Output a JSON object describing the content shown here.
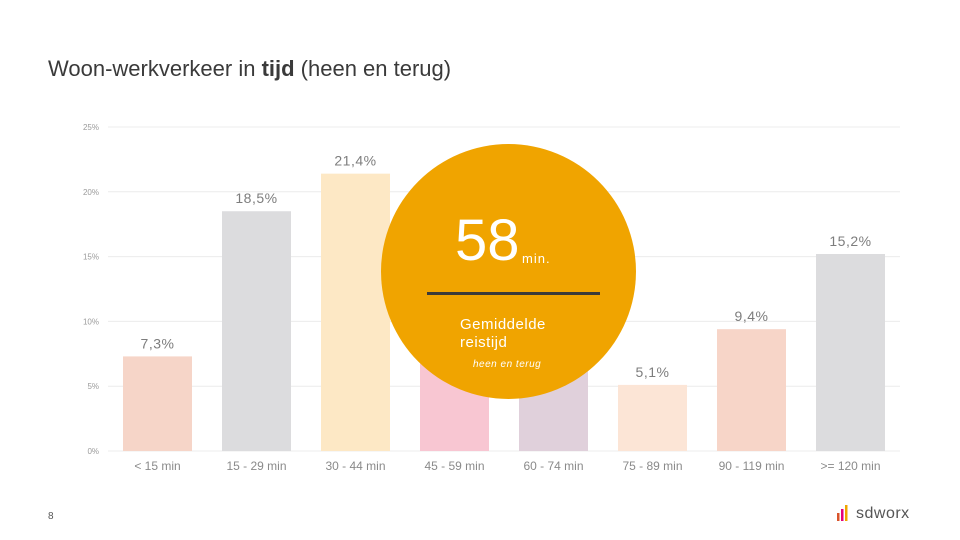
{
  "title": {
    "prefix": "Woon-werkverkeer in ",
    "bold": "tijd",
    "suffix": " (heen en terug)"
  },
  "chart_data": {
    "type": "bar",
    "categories": [
      "< 15 min",
      "15 - 29 min",
      "30 - 44 min",
      "45 - 59 min",
      "60 - 74 min",
      "75 - 89 min",
      "90 - 119 min",
      ">= 120 min"
    ],
    "values": [
      7.3,
      18.5,
      21.4,
      10.6,
      11.3,
      5.1,
      9.4,
      15.2
    ],
    "data_labels": [
      "7,3%",
      "18,5%",
      "21,4%",
      "",
      "",
      "5,1%",
      "9,4%",
      "15,2%"
    ],
    "colors": [
      "#f6d5c8",
      "#dcdcde",
      "#fde8c5",
      "#f8c6d2",
      "#e0d0db",
      "#fce5d6",
      "#f7d5c8",
      "#dcdcde"
    ],
    "yticks": [
      "0%",
      "5%",
      "10%",
      "15%",
      "20%",
      "25%"
    ],
    "ylim": [
      0,
      25
    ],
    "grid": true
  },
  "callout": {
    "value": "58",
    "unit": "min.",
    "label": "Gemiddelde reistijd",
    "sublabel": "heen en terug",
    "color": "#f0a400"
  },
  "footer": {
    "page_number": "8",
    "brand": "sdworx"
  }
}
